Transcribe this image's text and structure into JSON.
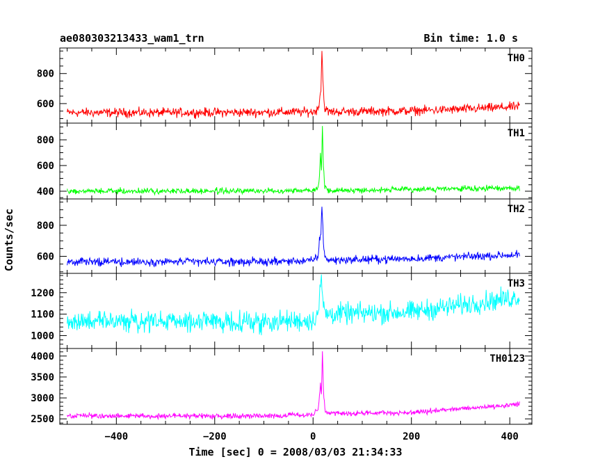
{
  "header": {
    "title": "ae080303213433_wam1_trn",
    "bin_time": "Bin time: 1.0 s"
  },
  "chart_data": {
    "type": "line",
    "xlabel": "Time [sec] 0 = 2008/03/03 21:34:33",
    "ylabel": "Counts/sec",
    "xlim": [
      -515,
      445
    ],
    "x_ticks": [
      -400,
      -200,
      0,
      200,
      400
    ],
    "x_tick_labels": [
      "−400",
      "−200",
      "0",
      "200",
      "400"
    ],
    "x_start": -500,
    "x_end": 420,
    "bin_time_s": 1.0,
    "panels": [
      {
        "name": "TH0",
        "color": "#ff0000",
        "ylim": [
          470,
          970
        ],
        "y_ticks": [
          600,
          800
        ],
        "profile": [
          {
            "x": -500,
            "y": 540
          },
          {
            "x": -300,
            "y": 540
          },
          {
            "x": -100,
            "y": 542
          },
          {
            "x": 0,
            "y": 545
          },
          {
            "x": 10,
            "y": 560
          },
          {
            "x": 14,
            "y": 650
          },
          {
            "x": 16,
            "y": 700
          },
          {
            "x": 18,
            "y": 960
          },
          {
            "x": 20,
            "y": 760
          },
          {
            "x": 23,
            "y": 580
          },
          {
            "x": 30,
            "y": 545
          },
          {
            "x": 200,
            "y": 552
          },
          {
            "x": 300,
            "y": 562
          },
          {
            "x": 420,
            "y": 580
          }
        ],
        "noise": 28
      },
      {
        "name": "TH1",
        "color": "#00ff00",
        "ylim": [
          340,
          930
        ],
        "y_ticks": [
          400,
          600,
          800
        ],
        "profile": [
          {
            "x": -500,
            "y": 400
          },
          {
            "x": -100,
            "y": 402
          },
          {
            "x": 0,
            "y": 410
          },
          {
            "x": 10,
            "y": 430
          },
          {
            "x": 13,
            "y": 520
          },
          {
            "x": 15,
            "y": 700
          },
          {
            "x": 17,
            "y": 560
          },
          {
            "x": 19,
            "y": 910
          },
          {
            "x": 21,
            "y": 600
          },
          {
            "x": 24,
            "y": 430
          },
          {
            "x": 30,
            "y": 405
          },
          {
            "x": 420,
            "y": 425
          }
        ],
        "noise": 20
      },
      {
        "name": "TH2",
        "color": "#0000ff",
        "ylim": [
          490,
          970
        ],
        "y_ticks": [
          600,
          800
        ],
        "profile": [
          {
            "x": -500,
            "y": 565
          },
          {
            "x": -100,
            "y": 565
          },
          {
            "x": 0,
            "y": 572
          },
          {
            "x": 10,
            "y": 600
          },
          {
            "x": 13,
            "y": 700
          },
          {
            "x": 16,
            "y": 740
          },
          {
            "x": 18,
            "y": 940
          },
          {
            "x": 21,
            "y": 700
          },
          {
            "x": 24,
            "y": 600
          },
          {
            "x": 30,
            "y": 575
          },
          {
            "x": 200,
            "y": 585
          },
          {
            "x": 420,
            "y": 610
          }
        ],
        "noise": 24
      },
      {
        "name": "TH3",
        "color": "#00ffff",
        "ylim": [
          940,
          1290
        ],
        "y_ticks": [
          1000,
          1100,
          1200
        ],
        "profile": [
          {
            "x": -500,
            "y": 1065
          },
          {
            "x": -100,
            "y": 1065
          },
          {
            "x": 0,
            "y": 1070
          },
          {
            "x": 12,
            "y": 1120
          },
          {
            "x": 16,
            "y": 1280
          },
          {
            "x": 19,
            "y": 1180
          },
          {
            "x": 25,
            "y": 1100
          },
          {
            "x": 200,
            "y": 1110
          },
          {
            "x": 420,
            "y": 1180
          }
        ],
        "noise": 45
      },
      {
        "name": "TH0123",
        "color": "#ff00ff",
        "ylim": [
          2370,
          4180
        ],
        "y_ticks": [
          2500,
          3000,
          3500,
          4000
        ],
        "profile": [
          {
            "x": -500,
            "y": 2570
          },
          {
            "x": -100,
            "y": 2570
          },
          {
            "x": 0,
            "y": 2600
          },
          {
            "x": 10,
            "y": 2700
          },
          {
            "x": 13,
            "y": 3000
          },
          {
            "x": 15,
            "y": 3350
          },
          {
            "x": 17,
            "y": 3100
          },
          {
            "x": 19,
            "y": 4120
          },
          {
            "x": 21,
            "y": 3200
          },
          {
            "x": 24,
            "y": 2750
          },
          {
            "x": 30,
            "y": 2620
          },
          {
            "x": 200,
            "y": 2650
          },
          {
            "x": 420,
            "y": 2850
          }
        ],
        "noise": 55
      }
    ]
  }
}
